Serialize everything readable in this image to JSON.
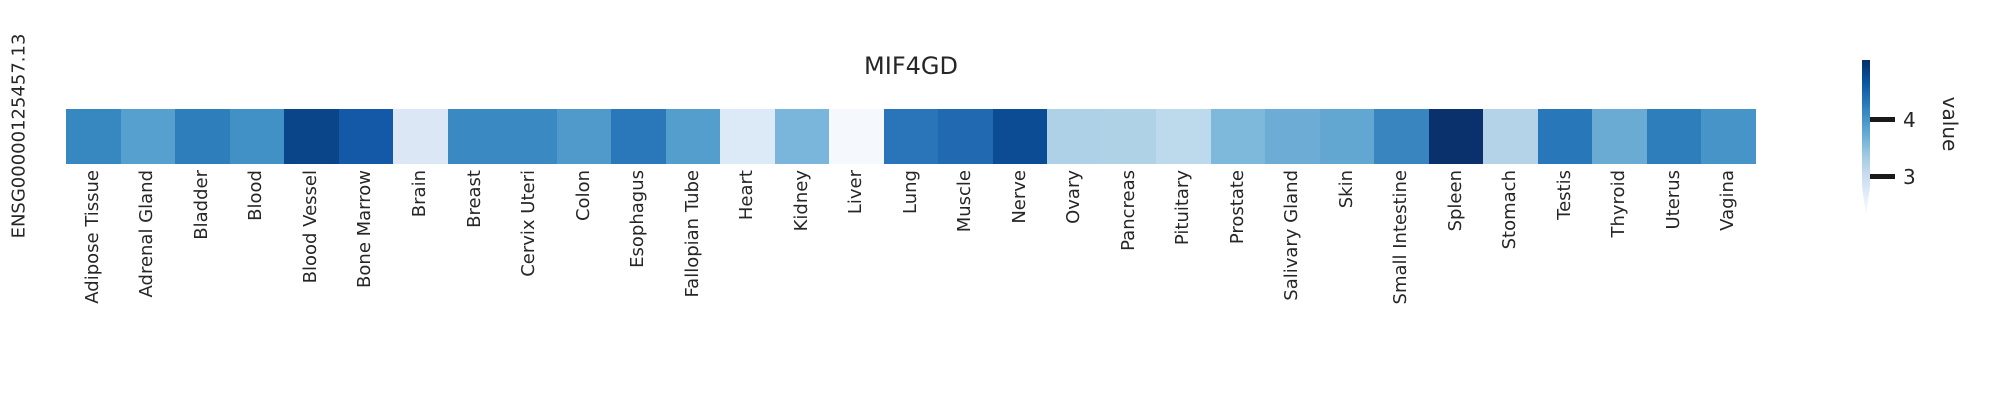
{
  "chart_data": {
    "type": "heatmap",
    "title": "MIF4GD",
    "row": "ENSG00000125457.13",
    "colormap": "Blues",
    "value_domain": [
      2.4,
      5.0
    ],
    "categories": [
      "Adipose Tissue",
      "Adrenal Gland",
      "Bladder",
      "Blood",
      "Blood Vessel",
      "Bone Marrow",
      "Brain",
      "Breast",
      "Cervix Uteri",
      "Colon",
      "Esophagus",
      "Fallopian Tube",
      "Heart",
      "Kidney",
      "Liver",
      "Lung",
      "Muscle",
      "Nerve",
      "Ovary",
      "Pancreas",
      "Pituitary",
      "Prostate",
      "Salivary Gland",
      "Skin",
      "Small Intestine",
      "Spleen",
      "Stomach",
      "Testis",
      "Thyroid",
      "Uterus",
      "Vagina"
    ],
    "values": [
      4.1,
      3.86,
      4.22,
      4.03,
      4.82,
      4.61,
      2.74,
      4.09,
      4.09,
      3.91,
      4.3,
      3.88,
      2.71,
      3.57,
      2.43,
      4.32,
      4.45,
      4.71,
      3.26,
      3.23,
      3.13,
      3.54,
      3.7,
      3.78,
      4.12,
      5.0,
      3.21,
      4.3,
      3.7,
      4.22,
      3.99
    ],
    "cell_colors": [
      "#3787c1",
      "#55a0ce",
      "#2e7ebc",
      "#4190c6",
      "#0a4489",
      "#1459a7",
      "#dbe7f5",
      "#3a89c3",
      "#3a89c3",
      "#4f9acb",
      "#2a78b9",
      "#549ecd",
      "#dce9f6",
      "#7ab6dc",
      "#f5f9fe",
      "#2a74b9",
      "#2169b1",
      "#0b4c95",
      "#aed1e7",
      "#b0d2e7",
      "#bdd9ec",
      "#7eb8da",
      "#6cacd5",
      "#61a7d2",
      "#3885c0",
      "#0a316b",
      "#b4d3e9",
      "#2878b9",
      "#6aabd4",
      "#2e7ebc",
      "#4795c8"
    ],
    "colorbar": {
      "label": "value",
      "tick_labels": [
        "4",
        "3"
      ],
      "tick_color": "#1a1a1a",
      "gradient": [
        {
          "color": "#08306b",
          "pos": "1%"
        },
        {
          "color": "#08519c",
          "pos": "13%"
        },
        {
          "color": "#2171b5",
          "pos": "25%"
        },
        {
          "color": "#4292c6",
          "pos": "37%"
        },
        {
          "color": "#6baed6",
          "pos": "49%"
        },
        {
          "color": "#9ecae1",
          "pos": "61%"
        },
        {
          "color": "#c6dbef",
          "pos": "73%"
        },
        {
          "color": "#deebf7",
          "pos": "85%"
        },
        {
          "color": "#f7fbff",
          "pos": "97%"
        }
      ]
    }
  }
}
